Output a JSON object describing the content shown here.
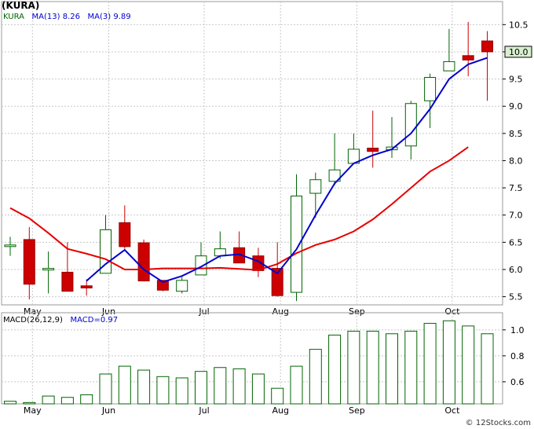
{
  "header": {
    "symbol": "(KURA)"
  },
  "legend": {
    "ticker": "KURA",
    "ma13_label": "MA(13)",
    "ma13_value": "8.26",
    "ma3_label": "MA(3)",
    "ma3_value": "9.89",
    "macd_label": "MACD(26,12,9)",
    "macd_value": "MACD=0.97"
  },
  "footer": {
    "credit": "© 12Stocks.com"
  },
  "colors": {
    "ma13": "#e60000",
    "ma3": "#0000cc",
    "up": "#006400",
    "down": "#cc0000",
    "bg": "#ffffff"
  },
  "chart_data": [
    {
      "type": "candlestick",
      "title": "(KURA)",
      "x_ticks": [
        {
          "label": "May",
          "index": 1
        },
        {
          "label": "Jun",
          "index": 5
        },
        {
          "label": "Jul",
          "index": 10
        },
        {
          "label": "Aug",
          "index": 14
        },
        {
          "label": "Sep",
          "index": 18
        },
        {
          "label": "Oct",
          "index": 23
        }
      ],
      "ylim": [
        5.35,
        10.75
      ],
      "y_ticks": [
        5.5,
        6.0,
        6.5,
        7.0,
        7.5,
        8.0,
        8.5,
        9.0,
        9.5,
        10.0,
        10.5
      ],
      "last_price": "10.0",
      "candles": [
        {
          "open": 6.45,
          "high": 6.6,
          "low": 6.25,
          "close": 6.45
        },
        {
          "open": 6.55,
          "high": 6.78,
          "low": 5.45,
          "close": 5.73
        },
        {
          "open": 6.0,
          "high": 6.33,
          "low": 5.56,
          "close": 6.02
        },
        {
          "open": 5.95,
          "high": 6.5,
          "low": 5.6,
          "close": 5.6
        },
        {
          "open": 5.7,
          "high": 5.82,
          "low": 5.52,
          "close": 5.66
        },
        {
          "open": 5.93,
          "high": 7.0,
          "low": 5.93,
          "close": 6.73
        },
        {
          "open": 6.86,
          "high": 7.18,
          "low": 6.38,
          "close": 6.42
        },
        {
          "open": 6.49,
          "high": 6.55,
          "low": 5.78,
          "close": 5.79
        },
        {
          "open": 5.8,
          "high": 5.8,
          "low": 5.6,
          "close": 5.62
        },
        {
          "open": 5.6,
          "high": 5.86,
          "low": 5.56,
          "close": 5.8
        },
        {
          "open": 5.9,
          "high": 6.5,
          "low": 5.9,
          "close": 6.25
        },
        {
          "open": 6.25,
          "high": 6.7,
          "low": 6.2,
          "close": 6.38
        },
        {
          "open": 6.4,
          "high": 6.7,
          "low": 6.12,
          "close": 6.12
        },
        {
          "open": 6.25,
          "high": 6.4,
          "low": 5.86,
          "close": 5.98
        },
        {
          "open": 6.02,
          "high": 6.5,
          "low": 5.5,
          "close": 5.52
        },
        {
          "open": 5.58,
          "high": 7.75,
          "low": 5.42,
          "close": 7.35
        },
        {
          "open": 7.4,
          "high": 7.78,
          "low": 6.95,
          "close": 7.65
        },
        {
          "open": 7.62,
          "high": 8.5,
          "low": 7.55,
          "close": 7.83
        },
        {
          "open": 7.95,
          "high": 8.5,
          "low": 7.95,
          "close": 8.21
        },
        {
          "open": 8.23,
          "high": 8.92,
          "low": 7.87,
          "close": 8.17
        },
        {
          "open": 8.2,
          "high": 8.8,
          "low": 8.05,
          "close": 8.25
        },
        {
          "open": 8.27,
          "high": 9.1,
          "low": 8.02,
          "close": 9.05
        },
        {
          "open": 9.1,
          "high": 9.6,
          "low": 8.6,
          "close": 9.53
        },
        {
          "open": 9.65,
          "high": 10.42,
          "low": 9.65,
          "close": 9.82
        },
        {
          "open": 9.93,
          "high": 10.55,
          "low": 9.55,
          "close": 9.85
        },
        {
          "open": 10.2,
          "high": 10.38,
          "low": 9.1,
          "close": 10.0
        }
      ],
      "series": [
        {
          "name": "MA(13)",
          "start_index": 0,
          "values": [
            7.13,
            6.94,
            6.67,
            6.38,
            6.29,
            6.19,
            6.0,
            6.0,
            6.02,
            6.02,
            6.02,
            6.03,
            6.01,
            5.99,
            6.1,
            6.3,
            6.45,
            6.55,
            6.7,
            6.92,
            7.2,
            7.5,
            7.8,
            8.0,
            8.25
          ]
        },
        {
          "name": "MA(3)",
          "start_index": 4,
          "values": [
            5.79,
            6.1,
            6.36,
            6.0,
            5.77,
            5.88,
            6.05,
            6.25,
            6.28,
            6.15,
            5.93,
            6.37,
            7.0,
            7.58,
            7.95,
            8.1,
            8.21,
            8.5,
            8.95,
            9.5,
            9.77,
            9.89
          ]
        }
      ]
    },
    {
      "type": "bar",
      "title": "MACD(26,12,9)",
      "ylim": [
        0.43,
        1.12
      ],
      "y_ticks": [
        0.6,
        0.8,
        1.0
      ],
      "values": [
        0.45,
        0.44,
        0.49,
        0.48,
        0.5,
        0.66,
        0.72,
        0.69,
        0.64,
        0.63,
        0.68,
        0.71,
        0.7,
        0.66,
        0.55,
        0.72,
        0.85,
        0.96,
        0.99,
        0.99,
        0.97,
        0.99,
        1.05,
        1.07,
        1.03,
        0.97
      ]
    }
  ]
}
